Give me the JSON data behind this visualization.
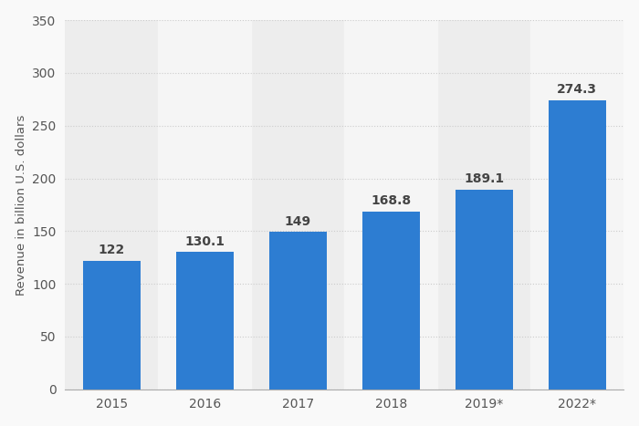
{
  "categories": [
    "2015",
    "2016",
    "2017",
    "2018",
    "2019*",
    "2022*"
  ],
  "values": [
    122,
    130.1,
    149,
    168.8,
    189.1,
    274.3
  ],
  "bar_color": "#2d7dd2",
  "ylabel": "Revenue in billion U.S. dollars",
  "ylim": [
    0,
    350
  ],
  "yticks": [
    0,
    50,
    100,
    150,
    200,
    250,
    300,
    350
  ],
  "background_color": "#f9f9f9",
  "plot_bg_color": "#ededed",
  "alt_bg_color": "#f5f5f5",
  "grid_color": "#cccccc",
  "label_fontsize": 9.5,
  "tick_fontsize": 10,
  "bar_label_fontsize": 10,
  "label_color": "#555555",
  "alternating_bg": [
    false,
    true,
    false,
    true,
    false,
    true
  ]
}
